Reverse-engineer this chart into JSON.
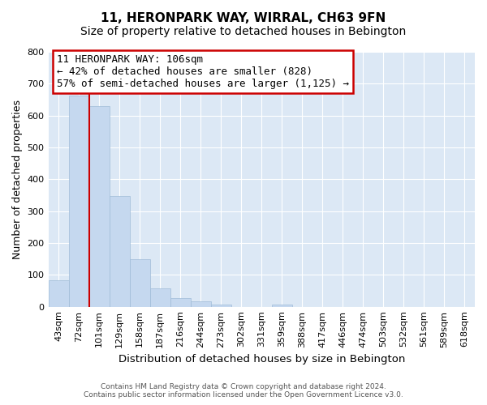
{
  "title": "11, HERONPARK WAY, WIRRAL, CH63 9FN",
  "subtitle": "Size of property relative to detached houses in Bebington",
  "xlabel": "Distribution of detached houses by size in Bebington",
  "ylabel": "Number of detached properties",
  "bar_labels": [
    "43sqm",
    "72sqm",
    "101sqm",
    "129sqm",
    "158sqm",
    "187sqm",
    "216sqm",
    "244sqm",
    "273sqm",
    "302sqm",
    "331sqm",
    "359sqm",
    "388sqm",
    "417sqm",
    "446sqm",
    "474sqm",
    "503sqm",
    "532sqm",
    "561sqm",
    "589sqm",
    "618sqm"
  ],
  "bar_values": [
    82,
    663,
    630,
    348,
    148,
    57,
    27,
    17,
    8,
    0,
    0,
    7,
    0,
    0,
    0,
    0,
    0,
    0,
    0,
    0,
    0
  ],
  "bar_color": "#c5d8ef",
  "bar_edge_color": "#a0bcd8",
  "vline_color": "#cc0000",
  "vline_x": 2,
  "ylim": [
    0,
    800
  ],
  "yticks": [
    0,
    100,
    200,
    300,
    400,
    500,
    600,
    700,
    800
  ],
  "annotation_title": "11 HERONPARK WAY: 106sqm",
  "annotation_line1": "← 42% of detached houses are smaller (828)",
  "annotation_line2": "57% of semi-detached houses are larger (1,125) →",
  "annotation_box_color": "#ffffff",
  "annotation_box_edge": "#cc0000",
  "footer_line1": "Contains HM Land Registry data © Crown copyright and database right 2024.",
  "footer_line2": "Contains public sector information licensed under the Open Government Licence v3.0.",
  "bg_color": "#ffffff",
  "plot_bg_color": "#dce8f5",
  "grid_color": "#ffffff",
  "title_fontsize": 11,
  "subtitle_fontsize": 10,
  "ylabel_fontsize": 9,
  "xlabel_fontsize": 9.5,
  "tick_fontsize": 8,
  "ann_fontsize": 9
}
